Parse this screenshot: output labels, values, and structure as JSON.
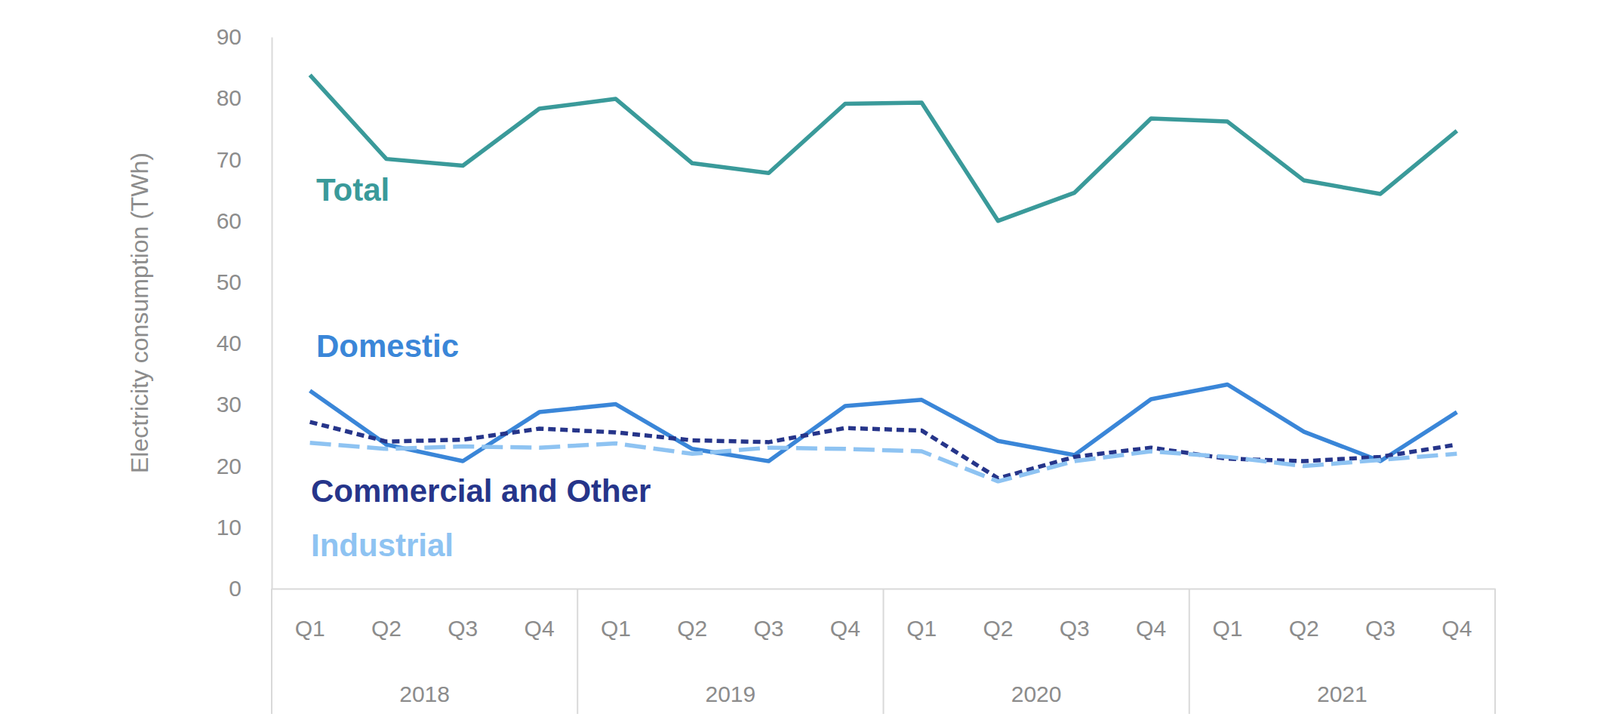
{
  "chart_data": {
    "type": "line",
    "y_label": "Electricity consumption (TWh)",
    "categories": [
      "Q1",
      "Q2",
      "Q3",
      "Q4",
      "Q1",
      "Q2",
      "Q3",
      "Q4",
      "Q1",
      "Q2",
      "Q3",
      "Q4",
      "Q1",
      "Q2",
      "Q3",
      "Q4"
    ],
    "category_groups": [
      "2018",
      "2019",
      "2020",
      "2021"
    ],
    "ylim": [
      0,
      90
    ],
    "yticks": [
      0,
      10,
      20,
      30,
      40,
      50,
      60,
      70,
      80,
      90
    ],
    "grid": false,
    "series": [
      {
        "name": "Total",
        "color": "#3a9a9a",
        "line_style": "solid",
        "values": [
          83.8,
          70.1,
          69.0,
          78.3,
          79.9,
          69.4,
          67.8,
          79.1,
          79.3,
          60.0,
          64.6,
          76.7,
          76.2,
          66.6,
          64.4,
          74.7
        ]
      },
      {
        "name": "Domestic",
        "color": "#3a86d8",
        "line_style": "solid",
        "values": [
          32.3,
          23.5,
          20.8,
          28.8,
          30.1,
          22.8,
          20.8,
          29.8,
          30.8,
          24.1,
          21.8,
          30.9,
          33.3,
          25.6,
          20.8,
          28.8
        ]
      },
      {
        "name": "Commercial and Other",
        "color": "#26358a",
        "line_style": "dotted",
        "values": [
          27.2,
          24.0,
          24.3,
          26.1,
          25.5,
          24.2,
          23.9,
          26.2,
          25.8,
          18.0,
          21.5,
          23.0,
          21.2,
          20.8,
          21.5,
          23.5
        ]
      },
      {
        "name": "Industrial",
        "color": "#8ec3f2",
        "line_style": "dashed",
        "values": [
          23.8,
          22.8,
          23.2,
          23.0,
          23.7,
          22.0,
          23.0,
          22.8,
          22.4,
          17.5,
          20.8,
          22.4,
          21.5,
          20.0,
          21.0,
          22.0
        ]
      }
    ]
  }
}
